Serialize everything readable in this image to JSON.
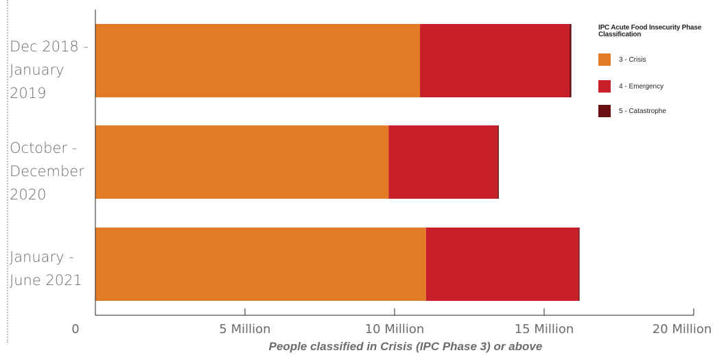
{
  "chart_data": {
    "type": "bar",
    "orientation": "horizontal",
    "stacked": true,
    "categories": [
      "Dec 2018 - January 2019",
      "October - December 2020",
      "January - June 2021"
    ],
    "category_lines": [
      [
        "Dec 2018 -",
        "January",
        "2019"
      ],
      [
        "October -",
        "December",
        "2020"
      ],
      [
        "January -",
        "June 2021"
      ]
    ],
    "series": [
      {
        "name": "3 - Crisis",
        "color": "#e27b25",
        "values": [
          10.85,
          9.8,
          11.05
        ]
      },
      {
        "name": "4 - Emergency",
        "color": "#c8202a",
        "values": [
          5.0,
          3.65,
          5.1
        ]
      },
      {
        "name": "5 - Catastrophe",
        "color": "#6b1012",
        "values": [
          0.06,
          0.03,
          0.03
        ]
      }
    ],
    "xlim": [
      0,
      20
    ],
    "x_ticks": [
      0,
      5,
      10,
      15,
      20
    ],
    "x_tick_labels": [
      "0",
      "5 Million",
      "10 Million",
      "15 Million",
      "20 Million"
    ],
    "xlabel": "People classified in Crisis (IPC Phase 3) or above",
    "legend_title": "IPC Acute Food Insecurity Phase Classification",
    "legend_position": "top-right",
    "grid": false
  }
}
